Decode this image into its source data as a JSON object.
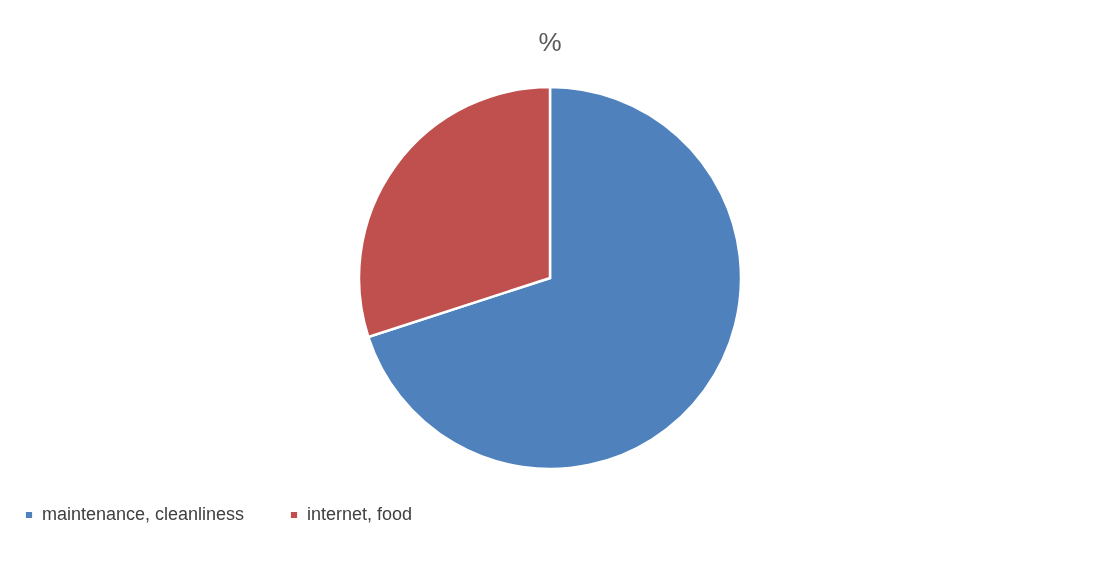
{
  "chart_data": {
    "type": "pie",
    "title": "%",
    "categories": [
      "maintenance, cleanliness",
      "internet, food"
    ],
    "values": [
      70,
      30
    ],
    "colors": [
      "#4f81bd",
      "#c0504d"
    ],
    "legend": "bottom"
  }
}
